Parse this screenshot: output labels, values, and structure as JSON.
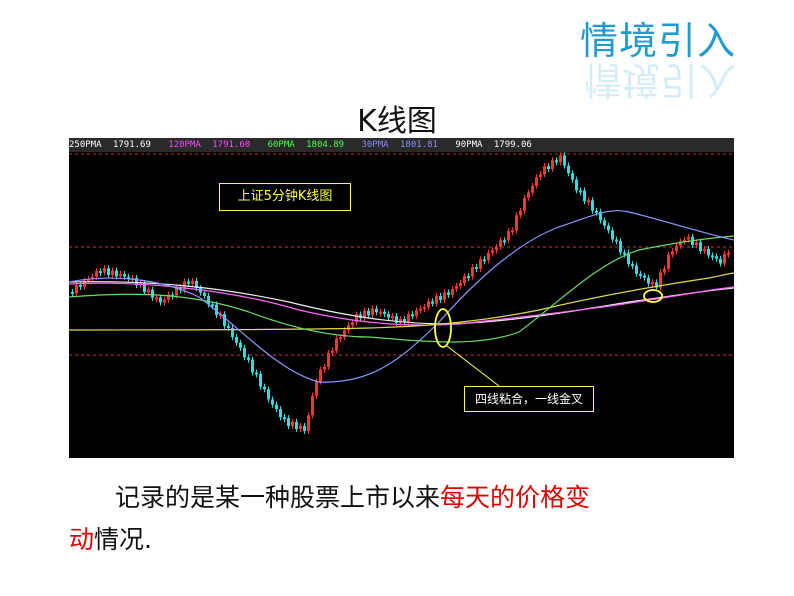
{
  "header": {
    "title": "情境引入"
  },
  "chart_title": "K线图",
  "chart_data": {
    "type": "candlestick",
    "moving_average_legend": [
      {
        "label": "250PMA",
        "value": "1791.69",
        "color": "#ffffff"
      },
      {
        "label": "120PMA",
        "value": "1791.60",
        "color": "#ff44ff"
      },
      {
        "label": "60PMA",
        "value": "1804.89",
        "color": "#44ff44"
      },
      {
        "label": "30PMA",
        "value": "1801.81",
        "color": "#8888ff"
      },
      {
        "label": "90PMA",
        "value": "1799.06",
        "color": "#ffffff"
      }
    ],
    "inner_title": "上证5分钟K线图",
    "annotation": "四线粘合，一线金叉",
    "up_color": "#ff3333",
    "down_color": "#33dddd"
  },
  "description": {
    "part1": "记录的是某一种股票上市以来",
    "highlight1": "每天的价格变",
    "highlight2": "动",
    "part2": "情况."
  }
}
